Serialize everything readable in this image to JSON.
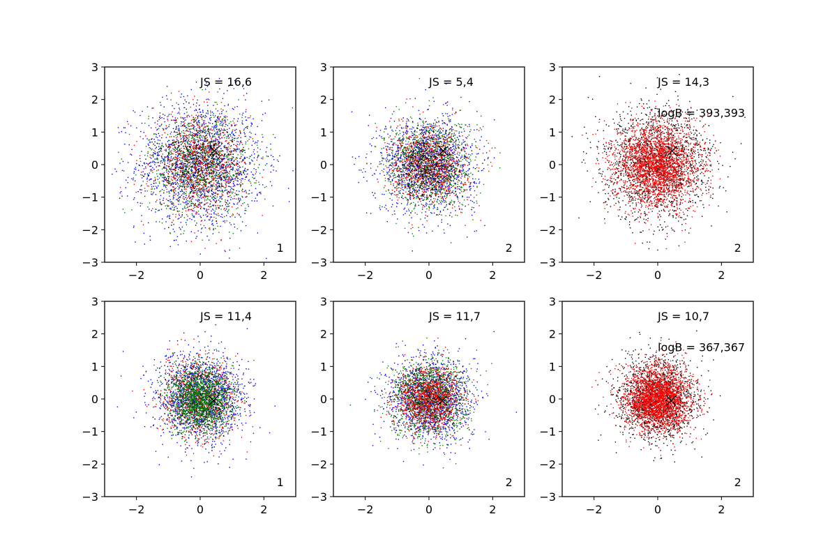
{
  "figure": {
    "rows": 2,
    "cols": 3,
    "background": "#ffffff",
    "colors": {
      "blue": "#0000ff",
      "red": "#ff0000",
      "green": "#008000",
      "black": "#000000"
    }
  },
  "chart_data": [
    {
      "type": "scatter",
      "title": "",
      "xlabel": "",
      "ylabel": "",
      "xlim": [
        -3,
        3
      ],
      "ylim": [
        -3,
        3
      ],
      "xticks": [
        -2,
        0,
        2
      ],
      "yticks": [
        -3,
        -2,
        -1,
        0,
        1,
        2,
        3
      ],
      "grid": false,
      "annotations": [
        {
          "text": "JS = 16,6",
          "x": 0.0,
          "y": 2.55
        },
        {
          "text": "1",
          "x": 2.4,
          "y": -2.55
        }
      ],
      "marker": {
        "shape": "x",
        "x": 0.45,
        "y": 0.42,
        "color": "#000000"
      },
      "series": [
        {
          "color": "#0000ff",
          "count": 1500,
          "mean": [
            0,
            0
          ],
          "sd": 1.0
        },
        {
          "color": "#008000",
          "count": 1100,
          "mean": [
            0,
            0
          ],
          "sd": 0.8
        },
        {
          "color": "#ff0000",
          "count": 900,
          "mean": [
            0,
            0
          ],
          "sd": 0.75
        },
        {
          "color": "#000000",
          "count": 500,
          "mean": [
            0,
            0
          ],
          "sd": 0.7
        }
      ]
    },
    {
      "type": "scatter",
      "title": "",
      "xlabel": "",
      "ylabel": "",
      "xlim": [
        -3,
        3
      ],
      "ylim": [
        -3,
        3
      ],
      "xticks": [
        -2,
        0,
        2
      ],
      "yticks": [
        -3,
        -2,
        -1,
        0,
        1,
        2,
        3
      ],
      "grid": false,
      "annotations": [
        {
          "text": "JS = 5,4",
          "x": 0.0,
          "y": 2.55
        },
        {
          "text": "2",
          "x": 2.4,
          "y": -2.55
        }
      ],
      "marker": {
        "shape": "x",
        "x": 0.45,
        "y": 0.42,
        "color": "#000000"
      },
      "series": [
        {
          "color": "#0000ff",
          "count": 1200,
          "mean": [
            0,
            0
          ],
          "sd": 0.75
        },
        {
          "color": "#008000",
          "count": 1100,
          "mean": [
            0,
            0
          ],
          "sd": 0.7
        },
        {
          "color": "#ff0000",
          "count": 900,
          "mean": [
            0,
            0
          ],
          "sd": 0.6
        },
        {
          "color": "#000000",
          "count": 500,
          "mean": [
            0,
            0
          ],
          "sd": 0.55
        }
      ]
    },
    {
      "type": "scatter",
      "title": "",
      "xlabel": "",
      "ylabel": "",
      "xlim": [
        -3,
        3
      ],
      "ylim": [
        -3,
        3
      ],
      "xticks": [
        -2,
        0,
        2
      ],
      "yticks": [
        -3,
        -2,
        -1,
        0,
        1,
        2,
        3
      ],
      "grid": false,
      "annotations": [
        {
          "text": "JS = 14,3",
          "x": 0.0,
          "y": 2.55
        },
        {
          "text": "logB = 393,393",
          "x": 0.0,
          "y": 1.6
        },
        {
          "text": "2",
          "x": 2.4,
          "y": -2.55
        }
      ],
      "marker": {
        "shape": "x",
        "x": 0.45,
        "y": 0.42,
        "color": "#000000"
      },
      "series": [
        {
          "color": "#000000",
          "count": 1600,
          "mean": [
            0,
            0
          ],
          "sd": 0.85
        },
        {
          "color": "#ff0000",
          "count": 2600,
          "mean": [
            0,
            0
          ],
          "sd": 0.65
        }
      ]
    },
    {
      "type": "scatter",
      "title": "",
      "xlabel": "",
      "ylabel": "",
      "xlim": [
        -3,
        3
      ],
      "ylim": [
        -3,
        3
      ],
      "xticks": [
        -2,
        0,
        2
      ],
      "yticks": [
        -3,
        -2,
        -1,
        0,
        1,
        2,
        3
      ],
      "grid": false,
      "annotations": [
        {
          "text": "JS = 11,4",
          "x": 0.0,
          "y": 2.55
        },
        {
          "text": "1",
          "x": 2.4,
          "y": -2.55
        }
      ],
      "marker": {
        "shape": "x",
        "x": 0.42,
        "y": -0.05,
        "color": "#000000"
      },
      "series": [
        {
          "color": "#0000ff",
          "count": 1400,
          "mean": [
            0,
            0
          ],
          "sd": 0.7
        },
        {
          "color": "#ff0000",
          "count": 800,
          "mean": [
            0,
            0
          ],
          "sd": 0.6
        },
        {
          "color": "#000000",
          "count": 500,
          "mean": [
            0,
            0
          ],
          "sd": 0.55
        },
        {
          "color": "#008000",
          "count": 1500,
          "mean": [
            0,
            0
          ],
          "sd": 0.5
        }
      ]
    },
    {
      "type": "scatter",
      "title": "",
      "xlabel": "",
      "ylabel": "",
      "xlim": [
        -3,
        3
      ],
      "ylim": [
        -3,
        3
      ],
      "xticks": [
        -2,
        0,
        2
      ],
      "yticks": [
        -3,
        -2,
        -1,
        0,
        1,
        2,
        3
      ],
      "grid": false,
      "annotations": [
        {
          "text": "JS = 11,7",
          "x": 0.0,
          "y": 2.55
        },
        {
          "text": "2",
          "x": 2.4,
          "y": -2.55
        }
      ],
      "marker": {
        "shape": "x",
        "x": 0.42,
        "y": -0.05,
        "color": "#000000"
      },
      "series": [
        {
          "color": "#0000ff",
          "count": 1200,
          "mean": [
            0,
            0
          ],
          "sd": 0.65
        },
        {
          "color": "#008000",
          "count": 1200,
          "mean": [
            0,
            0
          ],
          "sd": 0.6
        },
        {
          "color": "#000000",
          "count": 500,
          "mean": [
            0,
            0
          ],
          "sd": 0.5
        },
        {
          "color": "#ff0000",
          "count": 1000,
          "mean": [
            0,
            0
          ],
          "sd": 0.5
        }
      ]
    },
    {
      "type": "scatter",
      "title": "",
      "xlabel": "",
      "ylabel": "",
      "xlim": [
        -3,
        3
      ],
      "ylim": [
        -3,
        3
      ],
      "xticks": [
        -2,
        0,
        2
      ],
      "yticks": [
        -3,
        -2,
        -1,
        0,
        1,
        2,
        3
      ],
      "grid": false,
      "annotations": [
        {
          "text": "JS = 10,7",
          "x": 0.0,
          "y": 2.55
        },
        {
          "text": "logB = 367,367",
          "x": 0.0,
          "y": 1.6
        },
        {
          "text": "2",
          "x": 2.4,
          "y": -2.55
        }
      ],
      "marker": {
        "shape": "x",
        "x": 0.42,
        "y": -0.05,
        "color": "#000000"
      },
      "series": [
        {
          "color": "#000000",
          "count": 1600,
          "mean": [
            0,
            0
          ],
          "sd": 0.62
        },
        {
          "color": "#ff0000",
          "count": 2600,
          "mean": [
            0,
            0
          ],
          "sd": 0.5
        }
      ]
    }
  ]
}
